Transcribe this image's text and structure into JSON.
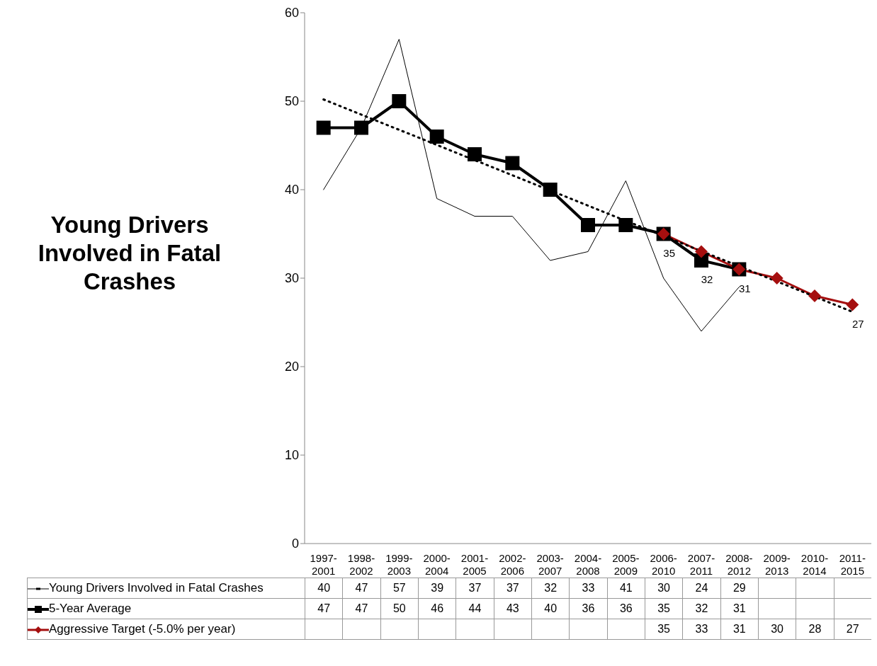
{
  "chart_data": {
    "type": "line",
    "title": "Young Drivers Involved in Fatal Crashes",
    "categories": [
      "1997-2001",
      "1998-2002",
      "1999-2003",
      "2000-2004",
      "2001-2005",
      "2002-2006",
      "2003-2007",
      "2004-2008",
      "2005-2009",
      "2006-2010",
      "2007-2011",
      "2008-2012",
      "2009-2013",
      "2010-2014",
      "2011-2015"
    ],
    "series": [
      {
        "name": "Young Drivers Involved in Fatal Crashes",
        "color": "#000000",
        "marker": "none",
        "values": [
          40,
          47,
          57,
          39,
          37,
          37,
          32,
          33,
          41,
          30,
          24,
          29,
          null,
          null,
          null
        ],
        "value_labels": [
          "40",
          "47",
          "57",
          "39",
          "37",
          "37",
          "32",
          "33",
          "41",
          "30",
          "24",
          "29",
          null,
          null,
          null
        ]
      },
      {
        "name": "5-Year Average",
        "color": "#000000",
        "marker": "square",
        "values": [
          47,
          47,
          50,
          46,
          44,
          43,
          40,
          36,
          36,
          35,
          32,
          31,
          null,
          null,
          null
        ],
        "value_labels": [
          "47",
          "47",
          "50",
          "46",
          "44",
          "43",
          "40",
          "36",
          "36",
          "35",
          "32",
          "31",
          null,
          null,
          null
        ]
      },
      {
        "name": "Aggressive Target (-5.0% per year)",
        "color": "#a50f0f",
        "marker": "diamond",
        "values": [
          null,
          null,
          null,
          null,
          null,
          null,
          null,
          null,
          null,
          35,
          33,
          31,
          30,
          28,
          27
        ],
        "value_labels": [
          null,
          null,
          null,
          null,
          null,
          null,
          null,
          null,
          null,
          "35",
          "33",
          "31",
          "30",
          "28",
          "27"
        ]
      },
      {
        "type": "line",
        "color": "#000000",
        "line_style": "dotted",
        "marker": "none",
        "x": [
          "1997-2001",
          "2011-2015"
        ],
        "values": [
          50.2,
          26.2
        ]
      }
    ],
    "annotations": [
      {
        "text": "35",
        "x": "2006-2010",
        "y": 35
      },
      {
        "text": "32",
        "x": "2007-2011",
        "y": 32
      },
      {
        "text": "31",
        "x": "2008-2012",
        "y": 31
      },
      {
        "text": "27",
        "x": "2011-2015",
        "y": 27
      }
    ],
    "ylim": [
      0,
      60
    ],
    "yticks": [
      0,
      10,
      20,
      30,
      40,
      50,
      60
    ],
    "legend": "bottom"
  }
}
